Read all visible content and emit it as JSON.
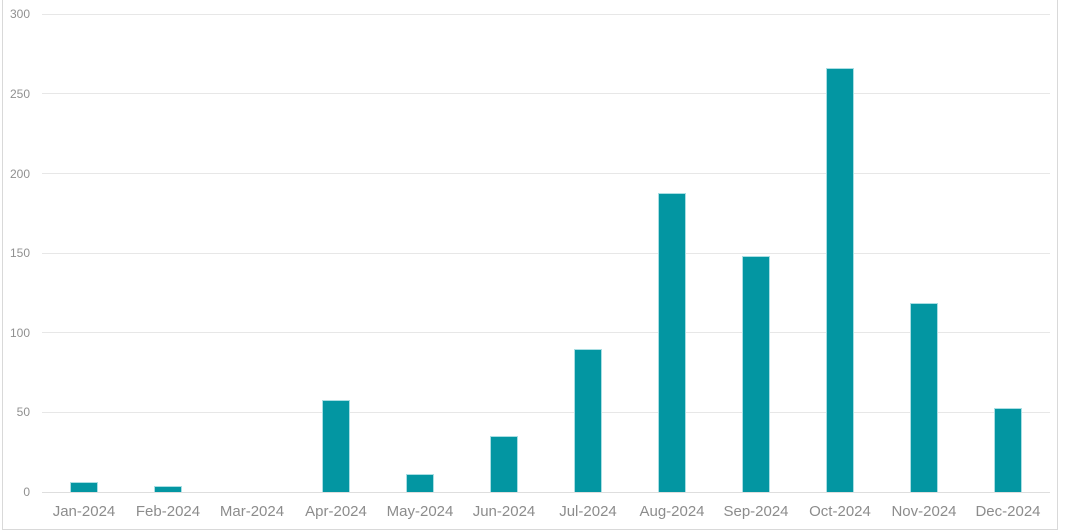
{
  "chart_data": {
    "type": "bar",
    "title": "",
    "xlabel": "",
    "ylabel": "",
    "categories": [
      "Jan-2024",
      "Feb-2024",
      "Mar-2024",
      "Apr-2024",
      "May-2024",
      "Jun-2024",
      "Jul-2024",
      "Aug-2024",
      "Sep-2024",
      "Oct-2024",
      "Nov-2024",
      "Dec-2024"
    ],
    "values": [
      6,
      4,
      0,
      58,
      11,
      35,
      90,
      188,
      148,
      266,
      119,
      53
    ],
    "ylim": [
      0,
      300
    ],
    "yticks": [
      0,
      50,
      100,
      150,
      200,
      250,
      300
    ],
    "grid": "horizontal",
    "legend": "none",
    "colors": {
      "bar_fill": "#0396A2",
      "bar_edge": "#A9DEE3",
      "gridline": "#E7E7E7",
      "baseline": "#DEDEDE",
      "y_label": "#909090",
      "x_label": "#8C8C8C",
      "frame_border": "#D9D9D9",
      "background": "#FFFFFF"
    }
  }
}
